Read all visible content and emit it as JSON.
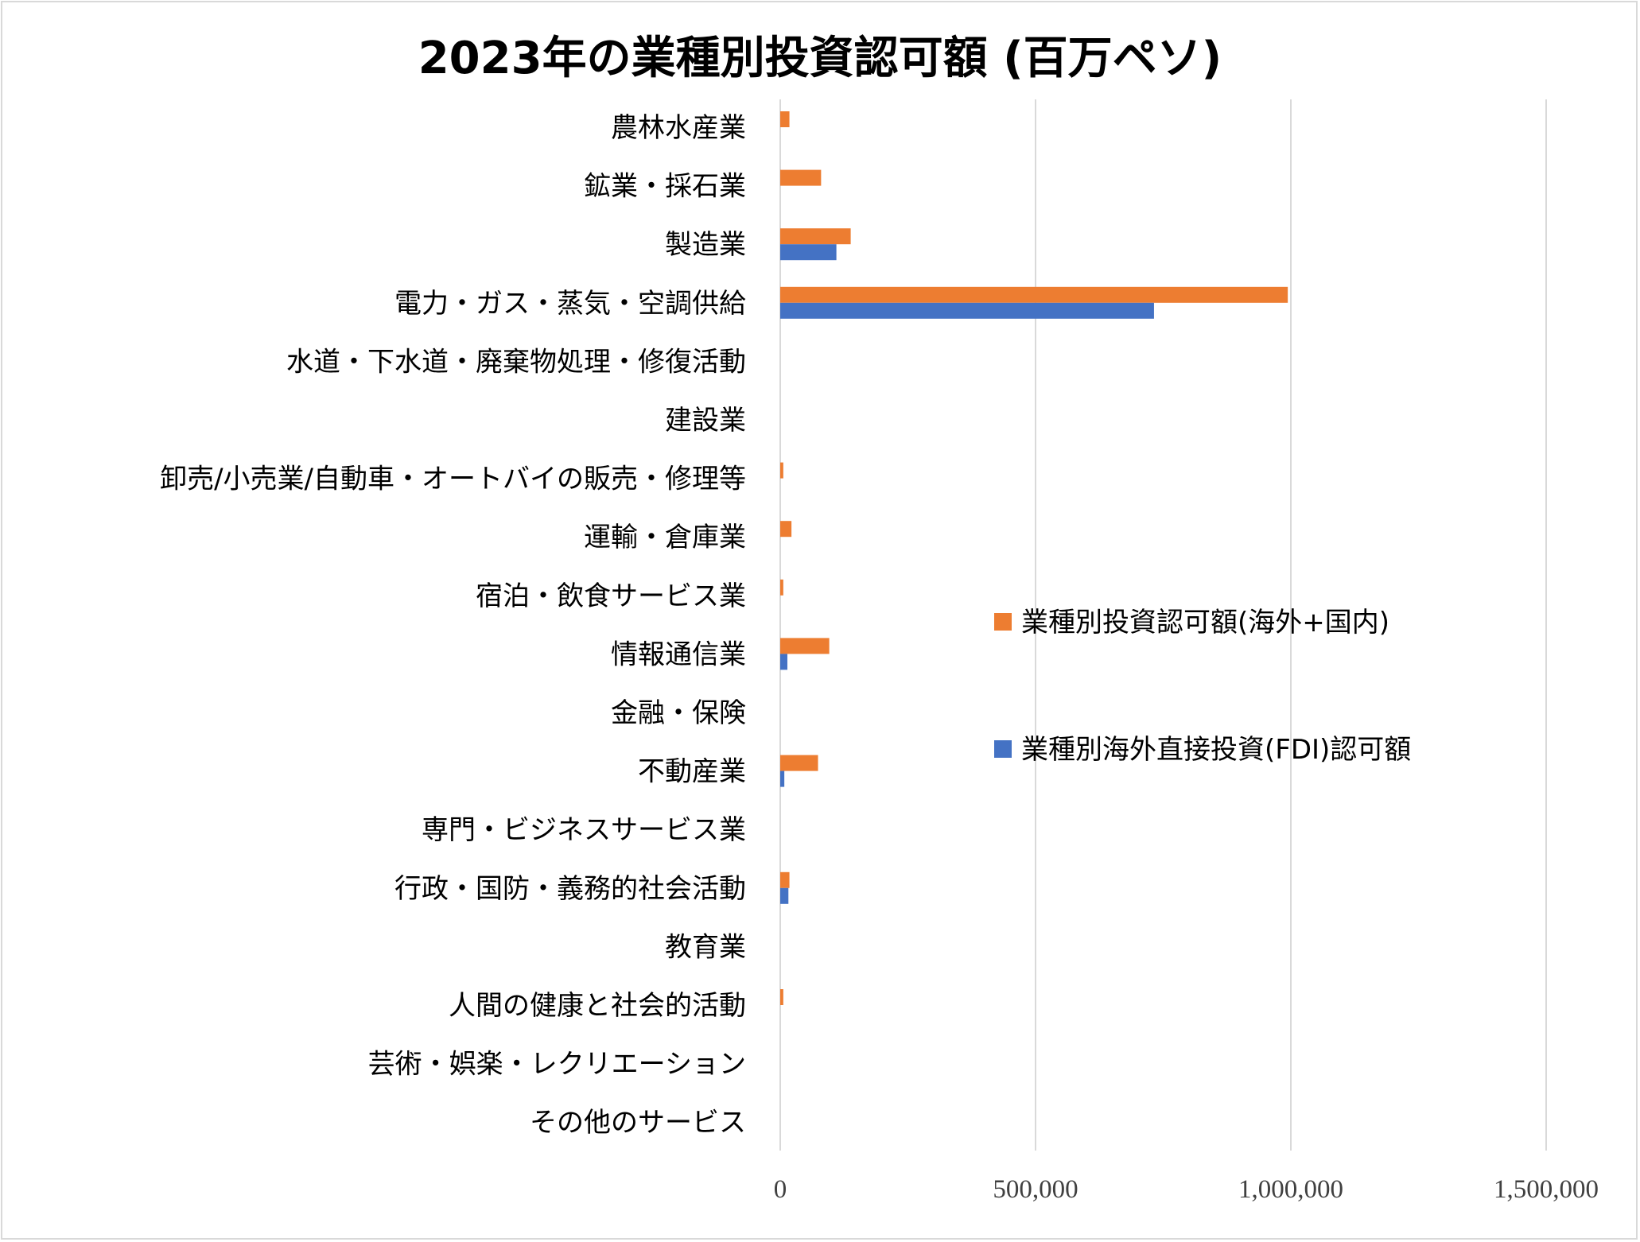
{
  "chart_data": {
    "type": "bar",
    "orientation": "horizontal",
    "title": "2023年の業種別投資認可額 (百万ペソ)",
    "categories": [
      "農林水産業",
      "鉱業・採石業",
      "製造業",
      "電力・ガス・蒸気・空調供給",
      "水道・下水道・廃棄物処理・修復活動",
      "建設業",
      "卸売/小売業/自動車・オートバイの販売・修理等",
      "運輸・倉庫業",
      "宿泊・飲食サービス業",
      "情報通信業",
      "金融・保険",
      "不動産業",
      "専門・ビジネスサービス業",
      "行政・国防・義務的社会活動",
      "教育業",
      "人間の健康と社会的活動",
      "芸術・娯楽・レクリエーション",
      "その他のサービス"
    ],
    "series": [
      {
        "name": "業種別投資認可額(海外+国内)",
        "color": "#ed7d31",
        "values": [
          18000,
          80000,
          138000,
          994000,
          0,
          0,
          6000,
          22000,
          6000,
          96000,
          0,
          74000,
          0,
          18000,
          0,
          6000,
          0,
          0
        ]
      },
      {
        "name": "業種別海外直接投資(FDI)認可額",
        "color": "#4472c4",
        "values": [
          0,
          0,
          110000,
          732000,
          0,
          0,
          0,
          0,
          0,
          14000,
          0,
          8000,
          0,
          16000,
          0,
          0,
          0,
          0
        ]
      }
    ],
    "xlim": [
      0,
      1500000
    ],
    "xticks": [
      0,
      500000,
      1000000,
      1500000
    ],
    "xtick_labels": [
      "0",
      "500,000",
      "1,000,000",
      "1,500,000"
    ],
    "grid": true,
    "legend": "right"
  }
}
